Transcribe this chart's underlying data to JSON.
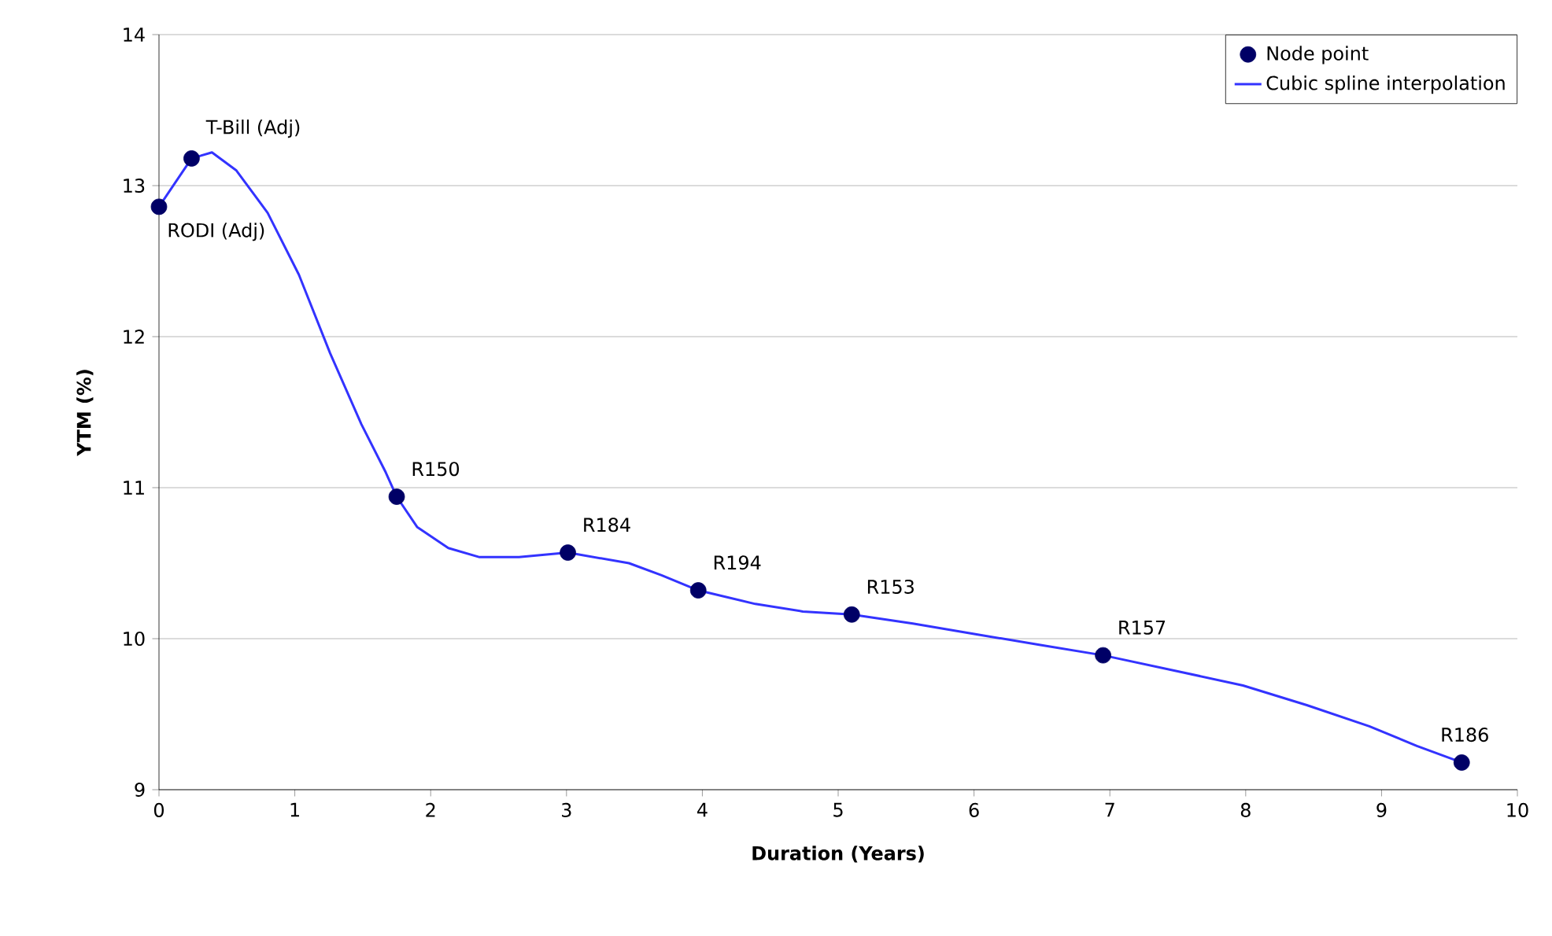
{
  "chart_data": {
    "type": "line",
    "xlabel": "Duration (Years)",
    "ylabel": "YTM (%)",
    "xlim": [
      0,
      10
    ],
    "ylim": [
      9,
      14
    ],
    "xticks": [
      0,
      1,
      2,
      3,
      4,
      5,
      6,
      7,
      8,
      9,
      10
    ],
    "yticks": [
      9,
      10,
      11,
      12,
      13,
      14
    ],
    "grid": "y",
    "legend": "top right",
    "series": [
      {
        "name": "Node point",
        "type": "scatter",
        "marker": "circle",
        "color": "#000066",
        "x": [
          0,
          0.24,
          1.75,
          3.01,
          3.97,
          5.1,
          6.95,
          9.59
        ],
        "values": [
          12.86,
          13.18,
          10.94,
          10.57,
          10.32,
          10.16,
          9.89,
          9.18
        ]
      },
      {
        "name": "Cubic spline interpolation",
        "marker": "none",
        "color": "#3333ff",
        "x": [
          0,
          0.24,
          0.39,
          0.57,
          0.8,
          1.03,
          1.26,
          1.49,
          1.67,
          1.75,
          1.9,
          2.13,
          2.36,
          2.65,
          3.01,
          3.46,
          3.7,
          3.97,
          4.39,
          4.74,
          5.1,
          5.55,
          6.01,
          6.48,
          6.95,
          7.52,
          7.98,
          8.45,
          8.91,
          9.26,
          9.59
        ],
        "values": [
          12.86,
          13.18,
          13.22,
          13.1,
          12.82,
          12.41,
          11.89,
          11.42,
          11.1,
          10.94,
          10.74,
          10.6,
          10.54,
          10.54,
          10.57,
          10.5,
          10.42,
          10.32,
          10.23,
          10.18,
          10.16,
          10.1,
          10.03,
          9.96,
          9.89,
          9.78,
          9.69,
          9.56,
          9.42,
          9.29,
          9.18
        ]
      }
    ],
    "annotations": [
      {
        "text": "RODI (Adj)",
        "x": 0,
        "y": 12.86
      },
      {
        "text": "T-Bill (Adj)",
        "x": 0.24,
        "y": 13.18
      },
      {
        "text": "R150",
        "x": 1.75,
        "y": 10.94
      },
      {
        "text": "R184",
        "x": 3.01,
        "y": 10.57
      },
      {
        "text": "R194",
        "x": 3.97,
        "y": 10.32
      },
      {
        "text": "R153",
        "x": 5.1,
        "y": 10.16
      },
      {
        "text": "R157",
        "x": 6.95,
        "y": 9.89
      },
      {
        "text": "R186",
        "x": 9.59,
        "y": 9.18
      }
    ]
  }
}
